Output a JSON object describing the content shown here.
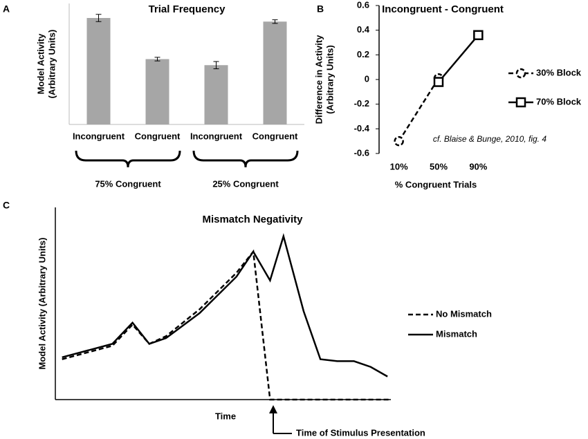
{
  "chart_data": [
    {
      "type": "bar",
      "panel": "A",
      "title": "Trial Frequency",
      "ylabel": [
        "Model Activity",
        "(Arbitrary Units)"
      ],
      "categories": [
        "Incongruent",
        "Congruent",
        "Incongruent",
        "Congruent"
      ],
      "values": [
        0.88,
        0.54,
        0.49,
        0.85
      ],
      "errors": [
        0.03,
        0.015,
        0.03,
        0.015
      ],
      "groups": [
        "75% Congruent",
        "25% Congruent"
      ],
      "color": "#a6a6a6",
      "ylim": [
        0,
        1
      ]
    },
    {
      "type": "line",
      "panel": "B",
      "title": "Incongruent - Congruent",
      "xlabel": "% Congruent Trials",
      "ylabel": [
        "Difference in Activity",
        "(Arbitrary Units)"
      ],
      "categories": [
        "10%",
        "50%",
        "90%"
      ],
      "series": [
        {
          "name": "30% Block",
          "color": "#000000",
          "style": "dashed",
          "marker": "circle",
          "values": [
            -0.5,
            0.01,
            null
          ]
        },
        {
          "name": "70% Block",
          "color": "#000000",
          "style": "solid",
          "marker": "square",
          "values": [
            null,
            -0.02,
            0.36
          ]
        }
      ],
      "ylim": [
        -0.6,
        0.6
      ],
      "yticks": [
        -0.6,
        -0.4,
        -0.2,
        0,
        0.2,
        0.4,
        0.6
      ],
      "annotation": "cf. Blaise & Bunge, 2010, fig. 4",
      "legend": "right"
    },
    {
      "type": "line",
      "panel": "C",
      "title": "Mismatch Negativity",
      "xlabel": "Time",
      "ylabel": [
        "Model Activity (Arbitrary Units)"
      ],
      "series": [
        {
          "name": "No Mismatch",
          "color": "#000000",
          "style": "dashed",
          "x": [
            2,
            17,
            23,
            28,
            33,
            43,
            54,
            59,
            64,
            100
          ],
          "values": [
            21,
            28,
            39,
            29,
            33,
            47,
            66,
            77,
            0,
            0
          ]
        },
        {
          "name": "Mismatch",
          "color": "#000000",
          "style": "solid",
          "x": [
            2,
            17,
            23,
            28,
            33,
            43,
            54,
            59,
            64,
            68,
            74,
            79,
            84,
            89,
            94,
            99
          ],
          "values": [
            22,
            29,
            40,
            29,
            32,
            45,
            64,
            77,
            62,
            85,
            46,
            21,
            20,
            20,
            17,
            12
          ]
        }
      ],
      "xlim": [
        0,
        100
      ],
      "ylim": [
        0,
        100
      ],
      "annotation": "Time of Stimulus Presentation",
      "legend": "right"
    }
  ]
}
